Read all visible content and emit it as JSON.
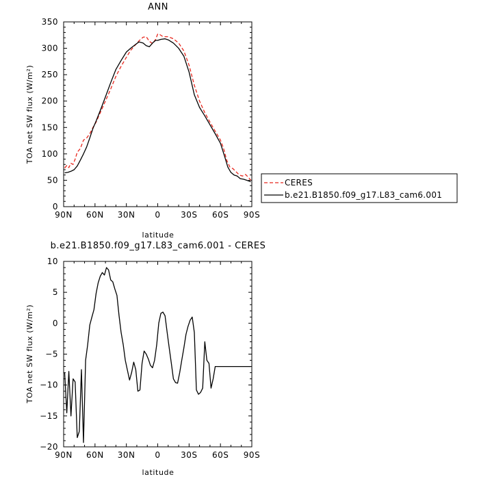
{
  "chart_data": [
    {
      "type": "line",
      "title": "ANN",
      "xlabel": "latitude",
      "ylabel": "TOA net SW flux (W/m²)",
      "xlim": [
        -90,
        90
      ],
      "ylim": [
        0,
        350
      ],
      "x_ticks": [
        -90,
        -60,
        -30,
        0,
        30,
        60,
        90
      ],
      "x_tick_labels": [
        "90N",
        "60N",
        "30N",
        "0",
        "30S",
        "60S",
        "90S"
      ],
      "y_ticks": [
        0,
        50,
        100,
        150,
        200,
        250,
        300,
        350
      ],
      "y_tick_labels": [
        "0",
        "50",
        "100",
        "150",
        "200",
        "250",
        "300",
        "350"
      ],
      "legend": "outside-right",
      "series": [
        {
          "name": "CERES",
          "color": "#e8261c",
          "dash": "dashed",
          "x": [
            -89,
            -87,
            -85,
            -83,
            -81,
            -79,
            -77,
            -74,
            -71,
            -68,
            -65,
            -62,
            -59,
            -55,
            -50,
            -45,
            -40,
            -35,
            -30,
            -26,
            -22,
            -18,
            -14,
            -11,
            -8,
            -5,
            -2,
            0,
            2,
            5,
            10,
            15,
            20,
            25,
            30,
            35,
            40,
            45,
            50,
            55,
            60,
            63,
            66,
            69,
            72,
            75,
            78,
            81,
            84,
            87,
            89
          ],
          "y": [
            73,
            78,
            74,
            82,
            80,
            90,
            103,
            110,
            126,
            130,
            138,
            150,
            160,
            178,
            200,
            223,
            247,
            266,
            283,
            296,
            305,
            314,
            321,
            322,
            313,
            309,
            317,
            327,
            326,
            322,
            322,
            318,
            310,
            295,
            268,
            230,
            200,
            178,
            160,
            143,
            126,
            110,
            88,
            75,
            72,
            66,
            60,
            58,
            61,
            55,
            50
          ]
        },
        {
          "name": "b.e21.B1850.f09_g17.L83_cam6.001",
          "color": "#000000",
          "dash": "solid",
          "x": [
            -89,
            -86,
            -83,
            -80,
            -77,
            -74,
            -71,
            -68,
            -65,
            -62,
            -59,
            -55,
            -50,
            -45,
            -40,
            -35,
            -30,
            -26,
            -22,
            -18,
            -14,
            -11,
            -8,
            -5,
            -2,
            0,
            3,
            7,
            10,
            15,
            20,
            25,
            30,
            35,
            40,
            45,
            50,
            55,
            60,
            64,
            67,
            70,
            73,
            76,
            79,
            82,
            85,
            88,
            89
          ],
          "y": [
            64,
            65,
            67,
            70,
            77,
            88,
            100,
            113,
            130,
            148,
            162,
            182,
            208,
            235,
            260,
            277,
            293,
            300,
            306,
            312,
            310,
            305,
            303,
            310,
            315,
            315,
            317,
            318,
            316,
            310,
            300,
            285,
            255,
            212,
            188,
            172,
            155,
            138,
            120,
            95,
            75,
            65,
            60,
            58,
            53,
            52,
            50,
            48,
            47
          ]
        }
      ]
    },
    {
      "type": "line",
      "title": "b.e21.B1850.f09_g17.L83_cam6.001 - CERES",
      "xlabel": "latitude",
      "ylabel": "TOA net SW flux (W/m²)",
      "xlim": [
        -90,
        90
      ],
      "ylim": [
        -20,
        10
      ],
      "x_ticks": [
        -90,
        -60,
        -30,
        0,
        30,
        60,
        90
      ],
      "x_tick_labels": [
        "90N",
        "60N",
        "30N",
        "0",
        "30S",
        "60S",
        "90S"
      ],
      "y_ticks": [
        -20,
        -15,
        -10,
        -5,
        0,
        5,
        10
      ],
      "y_tick_labels": [
        "−20",
        "−15",
        "−10",
        "−5",
        "0",
        "5",
        "10"
      ],
      "series": [
        {
          "color": "#000000",
          "dash": "solid",
          "x": [
            -89,
            -87,
            -85,
            -83,
            -81,
            -79,
            -77,
            -75,
            -73,
            -71,
            -69,
            -67,
            -65,
            -63,
            -61,
            -59,
            -57,
            -55,
            -53,
            -51,
            -49,
            -47,
            -45,
            -43,
            -41,
            -39,
            -37,
            -35,
            -33,
            -31,
            -29,
            -27,
            -25,
            -23,
            -21,
            -19,
            -17,
            -15,
            -13,
            -11,
            -9,
            -7,
            -5,
            -3,
            -1,
            1,
            3,
            5,
            7,
            9,
            11,
            13,
            15,
            17,
            19,
            21,
            23,
            25,
            27,
            29,
            31,
            33,
            35,
            37,
            39,
            41,
            43,
            45,
            47,
            49,
            51,
            53,
            55,
            57,
            59,
            61,
            63,
            65,
            67,
            69,
            71,
            73,
            75,
            77,
            79,
            81,
            83,
            85,
            87,
            89
          ],
          "y": [
            -8,
            -14.5,
            -7.8,
            -15,
            -9,
            -9.5,
            -18.5,
            -17.5,
            -7.5,
            -19.3,
            -6,
            -3.5,
            -0.3,
            1,
            2.2,
            4.8,
            6.5,
            7.6,
            8.2,
            7.8,
            9,
            8.6,
            7,
            6.7,
            5.5,
            4.5,
            1.2,
            -1.5,
            -3.5,
            -6,
            -7.6,
            -9.2,
            -8,
            -6.3,
            -7.5,
            -11,
            -10.8,
            -6.5,
            -4.5,
            -5,
            -5.8,
            -6.8,
            -7.2,
            -6,
            -3.5,
            0,
            1.6,
            1.8,
            1.2,
            -1.5,
            -4,
            -6.5,
            -9,
            -9.6,
            -9.7,
            -8,
            -6,
            -4,
            -1.8,
            -0.5,
            0.5,
            1,
            -1.5,
            -10.8,
            -11.5,
            -11.2,
            -10.5,
            -3,
            -6,
            -6.5,
            -10.5,
            -9,
            -7,
            -7,
            -7,
            -7,
            -7,
            -7,
            -7,
            -7,
            -7,
            -7,
            -7,
            -7,
            -7,
            -7,
            -7,
            -7,
            -7,
            -7
          ]
        }
      ]
    }
  ]
}
